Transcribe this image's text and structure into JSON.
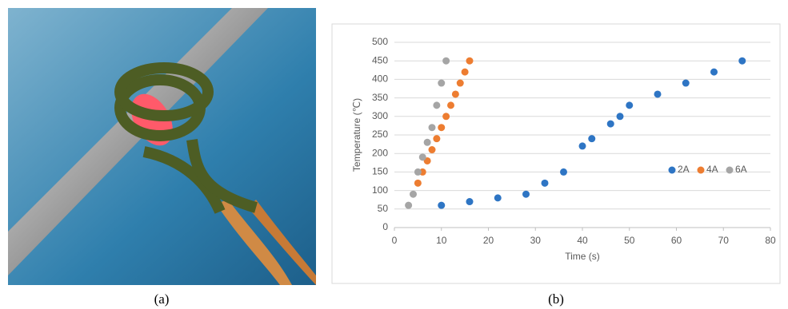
{
  "panel_labels": [
    "(a)",
    "(b)"
  ],
  "chart_data": {
    "type": "scatter",
    "x_label": "Time (s)",
    "y_label": "Temperature (℃)",
    "xlim": [
      0,
      80
    ],
    "xticks": [
      0,
      10,
      20,
      30,
      40,
      50,
      60,
      70,
      80
    ],
    "ylim": [
      0,
      500
    ],
    "yticks": [
      0,
      50,
      100,
      150,
      200,
      250,
      300,
      350,
      400,
      450,
      500
    ],
    "grid": true,
    "legend": "right",
    "series": [
      {
        "name": "2A",
        "color": "#2e75c4",
        "x": [
          10,
          16,
          22,
          28,
          32,
          36,
          40,
          42,
          46,
          48,
          50,
          56,
          62,
          68,
          74
        ],
        "values": [
          60,
          70,
          80,
          90,
          120,
          150,
          220,
          240,
          280,
          300,
          330,
          360,
          390,
          420,
          450
        ]
      },
      {
        "name": "4A",
        "color": "#ed7d31",
        "x": [
          5,
          6,
          7,
          8,
          9,
          10,
          11,
          12,
          13,
          14,
          15,
          16
        ],
        "values": [
          120,
          150,
          180,
          210,
          240,
          270,
          300,
          330,
          360,
          390,
          420,
          450
        ]
      },
      {
        "name": "6A",
        "color": "#a5a5a5",
        "x": [
          3,
          4,
          5,
          6,
          7,
          8,
          9,
          10,
          11
        ],
        "values": [
          60,
          90,
          150,
          190,
          230,
          270,
          330,
          390,
          450
        ]
      }
    ]
  }
}
